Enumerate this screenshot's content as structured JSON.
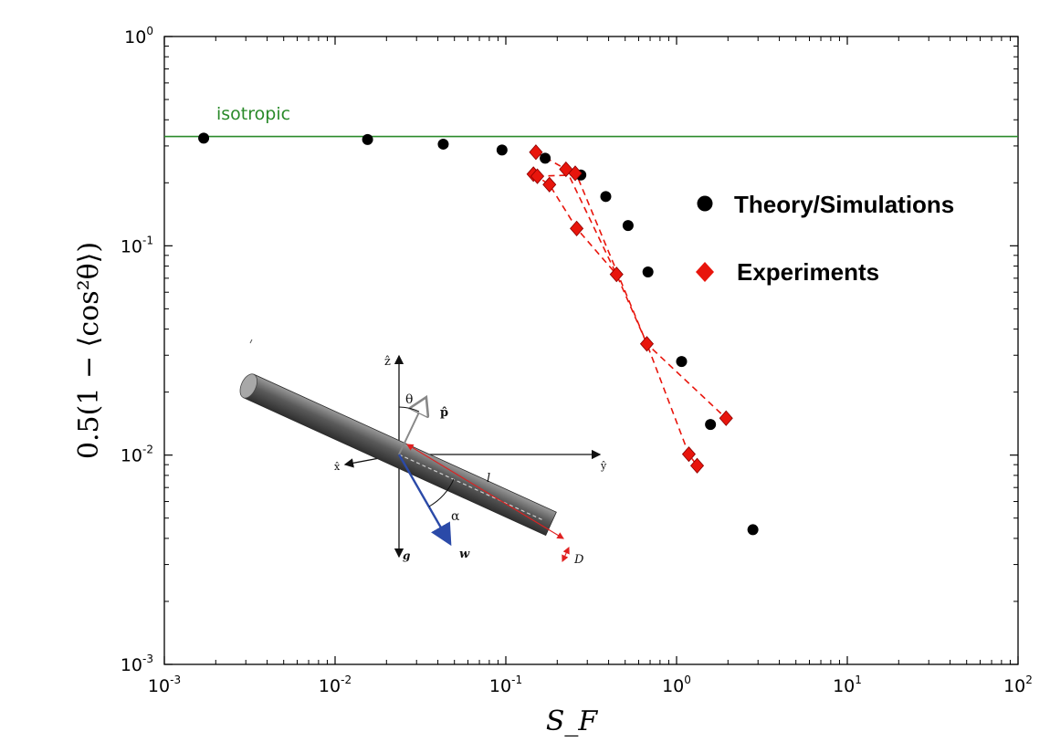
{
  "chart_data": {
    "type": "scatter",
    "title": "",
    "xlabel": "S_F",
    "ylabel": "0.5(1 − ⟨cos²θ⟩)",
    "xscale": "log",
    "yscale": "log",
    "xlim": [
      0.001,
      100
    ],
    "ylim": [
      0.001,
      1
    ],
    "x_ticks": [
      {
        "base": "10",
        "exp": "-3",
        "value": 0.001
      },
      {
        "base": "10",
        "exp": "-2",
        "value": 0.01
      },
      {
        "base": "10",
        "exp": "-1",
        "value": 0.1
      },
      {
        "base": "10",
        "exp": "0",
        "value": 1
      },
      {
        "base": "10",
        "exp": "1",
        "value": 10
      },
      {
        "base": "10",
        "exp": "2",
        "value": 100
      }
    ],
    "y_ticks": [
      {
        "base": "10",
        "exp": "-3",
        "value": 0.001
      },
      {
        "base": "10",
        "exp": "-2",
        "value": 0.01
      },
      {
        "base": "10",
        "exp": "-1",
        "value": 0.1
      },
      {
        "base": "10",
        "exp": "0",
        "value": 1
      }
    ],
    "grid": false,
    "legend_position": "right",
    "reference_line": {
      "label": "isotropic",
      "y": 0.333,
      "color": "#2a8a2a"
    },
    "series": [
      {
        "name": "Theory/Simulations",
        "marker": "circle",
        "color": "#000000",
        "points": [
          [
            0.0017,
            0.327
          ],
          [
            0.0155,
            0.322
          ],
          [
            0.043,
            0.306
          ],
          [
            0.095,
            0.287
          ],
          [
            0.17,
            0.262
          ],
          [
            0.275,
            0.218
          ],
          [
            0.385,
            0.172
          ],
          [
            0.52,
            0.125
          ],
          [
            0.68,
            0.075
          ],
          [
            1.07,
            0.028
          ],
          [
            1.58,
            0.014
          ],
          [
            2.8,
            0.0044
          ]
        ]
      },
      {
        "name": "Experiments",
        "marker": "diamond",
        "color": "#e8150c",
        "line_style": "dashed",
        "lines": [
          [
            [
              0.15,
              0.28
            ],
            [
              0.225,
              0.232
            ],
            [
              0.445,
              0.073
            ],
            [
              0.67,
              0.034
            ],
            [
              1.18,
              0.0101
            ],
            [
              1.32,
              0.0089
            ]
          ],
          [
            [
              0.145,
              0.22
            ],
            [
              0.18,
              0.196
            ],
            [
              0.26,
              0.121
            ],
            [
              0.445,
              0.073
            ]
          ],
          [
            [
              0.153,
              0.215
            ],
            [
              0.26,
              0.218
            ],
            [
              0.67,
              0.034
            ],
            [
              1.95,
              0.015
            ]
          ]
        ],
        "points": [
          [
            0.15,
            0.28
          ],
          [
            0.225,
            0.232
          ],
          [
            0.255,
            0.222
          ],
          [
            0.145,
            0.22
          ],
          [
            0.153,
            0.215
          ],
          [
            0.18,
            0.196
          ],
          [
            0.26,
            0.121
          ],
          [
            0.445,
            0.073
          ],
          [
            0.67,
            0.034
          ],
          [
            1.18,
            0.0101
          ],
          [
            1.32,
            0.0089
          ],
          [
            1.95,
            0.015
          ]
        ]
      }
    ]
  },
  "inset": {
    "labels": {
      "z": "ẑ",
      "y": "ŷ",
      "x": "x̂",
      "g": "g",
      "p": "p̂",
      "w": "w",
      "theta": "θ",
      "alpha": "α",
      "l": "l",
      "D": "D"
    },
    "colors": {
      "rod": "#555555",
      "w": "#2b4aa8",
      "p": "#888888",
      "dim": "#e02020"
    }
  }
}
